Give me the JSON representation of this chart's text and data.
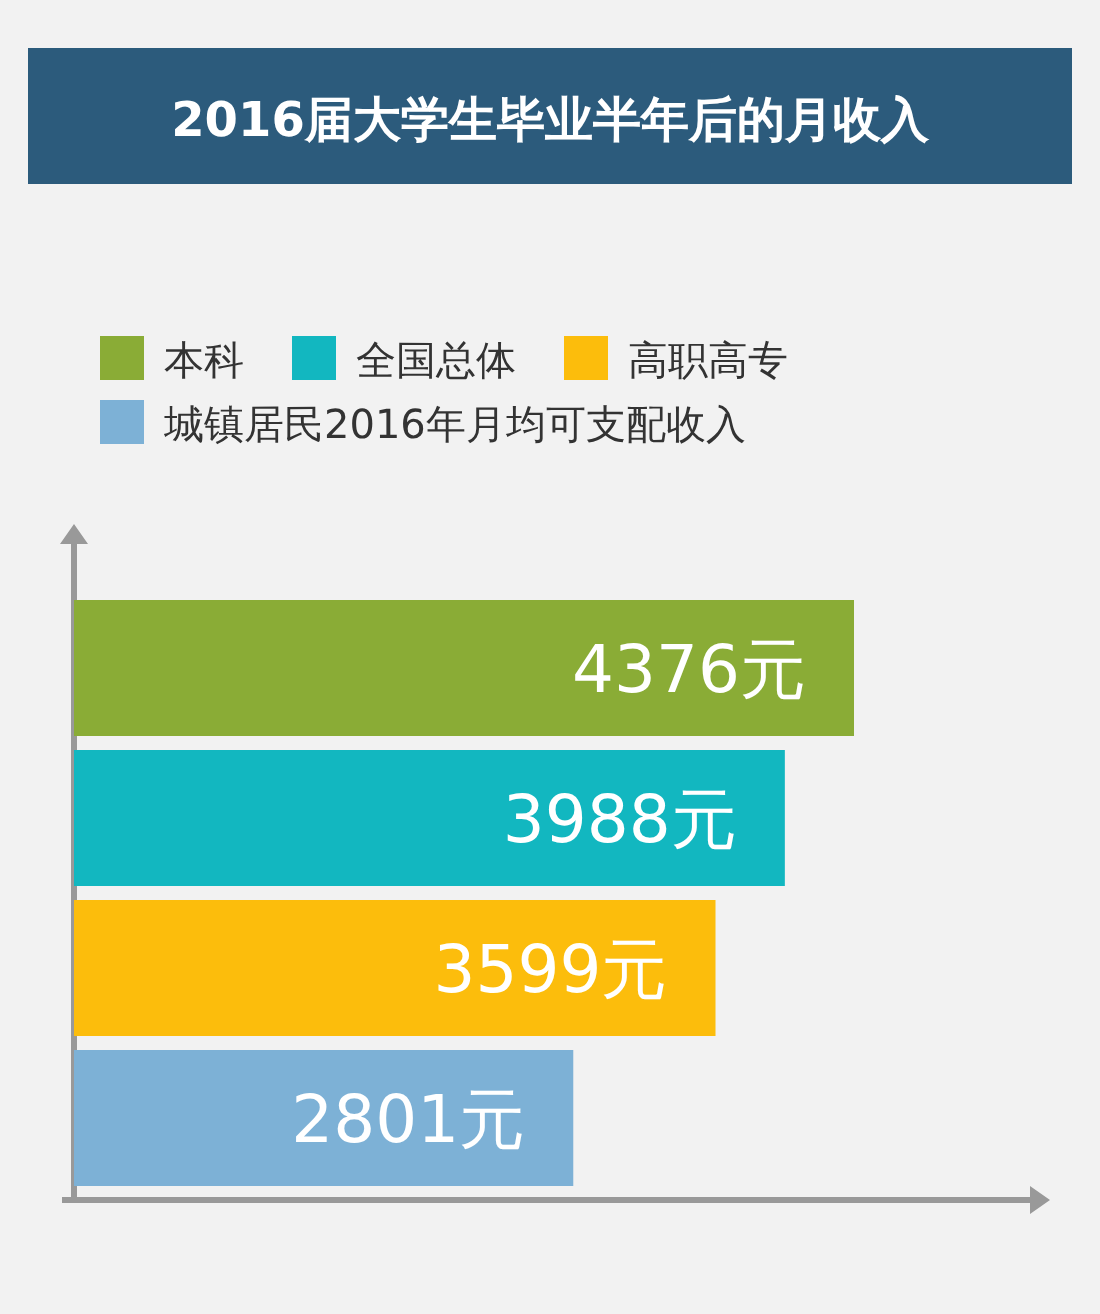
{
  "chart_data": {
    "type": "bar",
    "orientation": "horizontal",
    "title": "2016届大学生毕业半年后的月收入",
    "categories": [
      null
    ],
    "legend": "top left",
    "series": [
      {
        "name": "本科",
        "color": "#8aac36",
        "values": [
          4376
        ],
        "value_labels": [
          "4376元"
        ]
      },
      {
        "name": "全国总体",
        "color": "#12b7c0",
        "values": [
          3988
        ],
        "value_labels": [
          "3988元"
        ]
      },
      {
        "name": "高职高专",
        "color": "#fcbd0c",
        "values": [
          3599
        ],
        "value_labels": [
          "3599元"
        ]
      },
      {
        "name": "城镇居民2016年月均可支配收入",
        "color": "#7db1d6",
        "values": [
          2801
        ],
        "value_labels": [
          "2801元"
        ]
      }
    ]
  }
}
